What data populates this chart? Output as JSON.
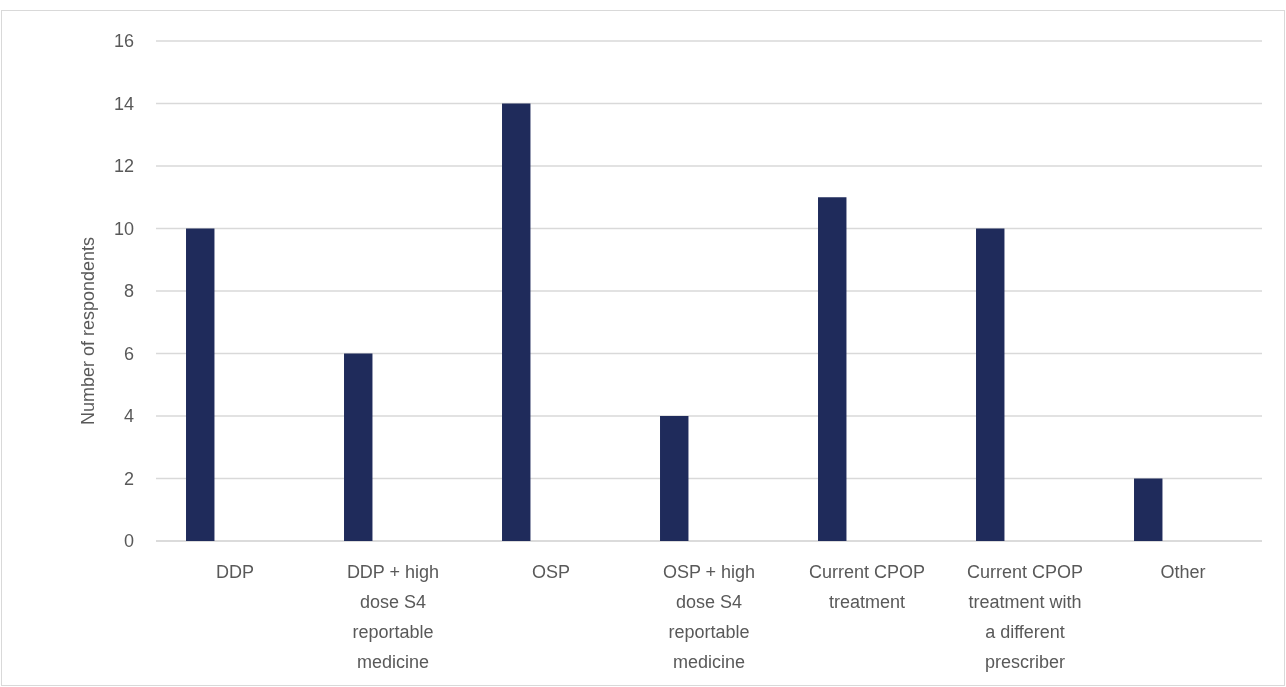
{
  "chart_data": {
    "type": "bar",
    "ylabel": "Number of respondents",
    "categories": [
      "DDP",
      "DDP + high dose S4 reportable medicine",
      "OSP",
      "OSP + high dose S4 reportable medicine",
      "Current CPOP treatment",
      "Current CPOP treatment with a different prescriber",
      "Other"
    ],
    "values": [
      10,
      6,
      14,
      4,
      11,
      10,
      2
    ],
    "color": "#1f2b5b",
    "ylim": [
      0,
      16
    ],
    "yticks": [
      0,
      2,
      4,
      6,
      8,
      10,
      12,
      14,
      16
    ],
    "grid": "y"
  }
}
